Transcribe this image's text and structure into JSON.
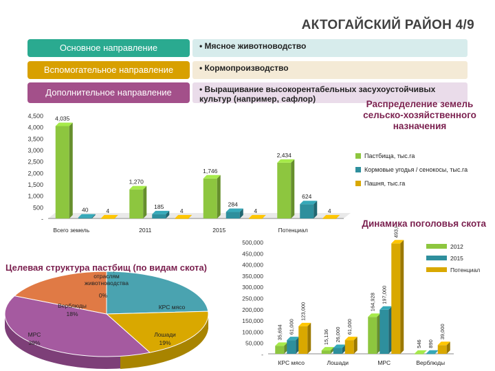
{
  "slide": {
    "title": "АКТОГАЙСКИЙ РАЙОН 4/9"
  },
  "directions": [
    {
      "label": "Основное направление",
      "value": "• Мясное животноводство",
      "color": "#2aaa90",
      "bg": "#d7ecec"
    },
    {
      "label": "Вспомогательное направление",
      "value": "• Кормопроизводство",
      "color": "#d8a000",
      "bg": "#f4ead6"
    },
    {
      "label": "Дополнительное направление",
      "value": "• Выращивание высокорентабельных засухоустойчивых культур (например, сафлор)",
      "color": "#a3508a",
      "bg": "#eadcea"
    }
  ],
  "land": {
    "title": "Распределение земель сельско-хозяйственного назначения"
  },
  "herd": {
    "title": "Динамика поголовья скота"
  },
  "pasture": {
    "title": "Целевая структура пастбищ (по видам скота)",
    "center_label": "Распределение пастбищ по отраслям животноводства"
  },
  "chart_data": [
    {
      "type": "bar",
      "title": "Распределение земель сельско-хозяйственного назначения",
      "categories": [
        "Всего земель",
        "2011",
        "2015",
        "Потенциал"
      ],
      "series": [
        {
          "name": "Пастбища, тыс.га",
          "color": "#8dc63f",
          "values": [
            4035,
            1270,
            1746,
            2434
          ]
        },
        {
          "name": "Кормовые угодья / сенокосы, тыс.га",
          "color": "#2e8f9d",
          "values": [
            40,
            185,
            284,
            624
          ]
        },
        {
          "name": "Пашня, тыс.га",
          "color": "#d9a800",
          "values": [
            4,
            4,
            4,
            4
          ]
        }
      ],
      "value_labels": [
        [
          "4,035",
          "1,270",
          "1,746",
          "2,434"
        ],
        [
          "40",
          "185",
          "284",
          "624"
        ],
        [
          "4",
          "4",
          "4",
          "4"
        ]
      ],
      "ylim": [
        0,
        4500
      ],
      "yticks": [
        "-",
        "500",
        "1,000",
        "1,500",
        "2,000",
        "2,500",
        "3,000",
        "3,500",
        "4,000",
        "4,500"
      ],
      "ytick_values": [
        0,
        500,
        1000,
        1500,
        2000,
        2500,
        3000,
        3500,
        4000,
        4500
      ],
      "legend_position": "right"
    },
    {
      "type": "bar",
      "title": "Динамика поголовья скота",
      "categories": [
        "КРС мясо",
        "Лошади",
        "МРС",
        "Верблюды"
      ],
      "series": [
        {
          "name": "2012",
          "color": "#8dc63f",
          "values": [
            35694,
            15136,
            164928,
            546
          ]
        },
        {
          "name": "2015",
          "color": "#2e8f9d",
          "values": [
            61000,
            26000,
            197000,
            890
          ]
        },
        {
          "name": "Потенциал",
          "color": "#d9a800",
          "values": [
            123000,
            61000,
            493000,
            39000
          ]
        }
      ],
      "value_labels": [
        [
          "35,694",
          "15,136",
          "164,928",
          "546"
        ],
        [
          "61,000",
          "26,000",
          "197,000",
          "890"
        ],
        [
          "123,000",
          "61,000",
          "493,000",
          "39,000"
        ]
      ],
      "ylim": [
        0,
        500000
      ],
      "yticks": [
        "-",
        "50,000",
        "100,000",
        "150,000",
        "200,000",
        "250,000",
        "300,000",
        "350,000",
        "400,000",
        "450,000",
        "500,000"
      ],
      "ytick_values": [
        0,
        50000,
        100000,
        150000,
        200000,
        250000,
        300000,
        350000,
        400000,
        450000,
        500000
      ],
      "legend_position": "right"
    },
    {
      "type": "pie",
      "title": "Целевая структура пастбищ (по видам скота)",
      "slices": [
        {
          "name": "КРС мясо",
          "value": 24,
          "label": "24%",
          "color": "#4aa3b0"
        },
        {
          "name": "Лошади",
          "value": 19,
          "label": "19%",
          "color": "#d9a800"
        },
        {
          "name": "МРС",
          "value": 39,
          "label": "39%",
          "color": "#a55aa0"
        },
        {
          "name": "Верблюды",
          "value": 18,
          "label": "18%",
          "color": "#e07a45"
        },
        {
          "name": "",
          "value": 0,
          "label": "0%",
          "color": "#888888"
        }
      ]
    }
  ]
}
